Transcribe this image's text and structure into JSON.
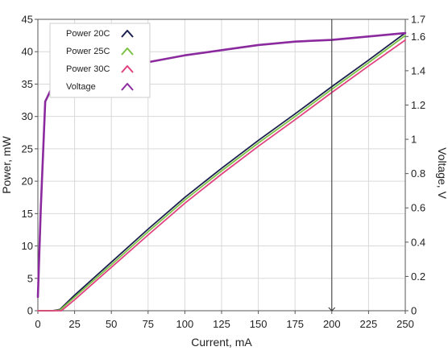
{
  "chart_data": {
    "type": "line",
    "xlabel": "Current, mA",
    "ylabel_left": "Power, mW",
    "ylabel_right": "Voltage, V",
    "xlim": [
      0,
      250
    ],
    "ylim_left": [
      0,
      45
    ],
    "ylim_right": [
      0,
      1.7
    ],
    "x_ticks": [
      0,
      25,
      50,
      75,
      100,
      125,
      150,
      175,
      200,
      225,
      250
    ],
    "y_ticks_left": [
      0,
      5,
      10,
      15,
      20,
      25,
      30,
      35,
      40,
      45
    ],
    "y_ticks_right": [
      0,
      0.2,
      0.4,
      0.6,
      0.8,
      1,
      1.2,
      1.4,
      1.6,
      1.7
    ],
    "grid": true,
    "legend_position": "top-left",
    "cursor_x": 200,
    "series": [
      {
        "name": "Power 20C",
        "axis": "left",
        "color": "#1a1f4e",
        "x": [
          0,
          10,
          15,
          25,
          50,
          75,
          100,
          125,
          150,
          175,
          200,
          225,
          250
        ],
        "y": [
          0,
          0,
          0.2,
          2.4,
          7.5,
          12.6,
          17.5,
          22.0,
          26.3,
          30.4,
          34.6,
          38.7,
          42.9
        ]
      },
      {
        "name": "Power 25C",
        "axis": "left",
        "color": "#7cc242",
        "x": [
          0,
          10,
          15,
          25,
          50,
          75,
          100,
          125,
          150,
          175,
          200,
          225,
          250
        ],
        "y": [
          0,
          0,
          0.1,
          2.1,
          7.1,
          12.2,
          17.1,
          21.6,
          25.9,
          30.0,
          34.2,
          38.3,
          42.5
        ]
      },
      {
        "name": "Power 30C",
        "axis": "left",
        "color": "#e0437f",
        "x": [
          0,
          10,
          16,
          25,
          50,
          75,
          100,
          125,
          150,
          175,
          200,
          225,
          250
        ],
        "y": [
          0,
          0,
          0,
          1.7,
          6.7,
          11.7,
          16.6,
          21.1,
          25.4,
          29.5,
          33.7,
          37.8,
          41.8
        ]
      },
      {
        "name": "Voltage",
        "axis": "right",
        "color": "#8b2a9e",
        "x": [
          0,
          2,
          5,
          10,
          15,
          25,
          50,
          75,
          100,
          125,
          150,
          175,
          200,
          225,
          250
        ],
        "y": [
          0.08,
          0.6,
          1.22,
          1.31,
          1.36,
          1.4,
          1.43,
          1.45,
          1.49,
          1.52,
          1.55,
          1.57,
          1.58,
          1.6,
          1.62
        ]
      }
    ]
  }
}
